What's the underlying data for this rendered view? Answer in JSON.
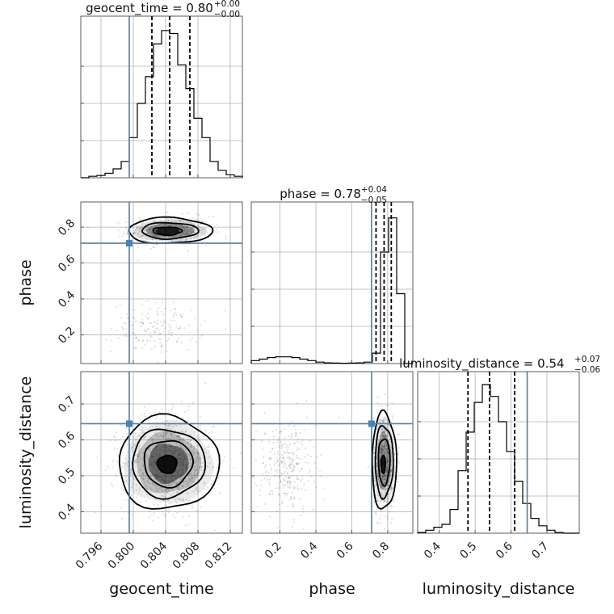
{
  "chart_data": {
    "type": "corner",
    "parameters": [
      {
        "name": "geocent_time",
        "label": "geocent_time",
        "range": [
          0.7935,
          0.8135
        ],
        "ticks": [
          0.796,
          0.8,
          0.804,
          0.808,
          0.812
        ],
        "tick_labels": [
          "0.796",
          "0.800",
          "0.804",
          "0.808",
          "0.812"
        ],
        "truth": 0.7995,
        "quantiles": [
          0.8023,
          0.8045,
          0.807
        ],
        "title_main": "geocent_time = 0.80",
        "title_plus": "+0.00",
        "title_minus": "−0.00",
        "histogram": {
          "edges": [
            0.7935,
            0.7945,
            0.7955,
            0.7965,
            0.7975,
            0.7985,
            0.7995,
            0.8005,
            0.8015,
            0.8025,
            0.8035,
            0.8045,
            0.8055,
            0.8065,
            0.8075,
            0.8085,
            0.8095,
            0.8105,
            0.8115,
            0.8125,
            0.8135
          ],
          "counts": [
            0,
            0.01,
            0.015,
            0.03,
            0.06,
            0.11,
            0.27,
            0.5,
            0.68,
            0.9,
            0.99,
            0.97,
            0.76,
            0.6,
            0.4,
            0.27,
            0.11,
            0.05,
            0.02,
            0.01
          ]
        }
      },
      {
        "name": "phase",
        "label": "phase",
        "range": [
          0.04,
          0.94
        ],
        "ticks": [
          0.2,
          0.4,
          0.6,
          0.8
        ],
        "tick_labels": [
          "0.2",
          "0.4",
          "0.6",
          "0.8"
        ],
        "truth": 0.71,
        "quantiles": [
          0.735,
          0.78,
          0.82
        ],
        "title_main": "phase = 0.78",
        "title_plus": "+0.04",
        "title_minus": "−0.05",
        "histogram": {
          "edges": [
            0.04,
            0.085,
            0.13,
            0.175,
            0.22,
            0.265,
            0.31,
            0.355,
            0.4,
            0.445,
            0.49,
            0.535,
            0.58,
            0.625,
            0.67,
            0.715,
            0.76,
            0.805,
            0.85,
            0.895,
            0.94
          ],
          "counts": [
            0.02,
            0.03,
            0.04,
            0.045,
            0.045,
            0.04,
            0.03,
            0.02,
            0.01,
            0.005,
            0.003,
            0.002,
            0.003,
            0.005,
            0.01,
            0.07,
            0.75,
            0.98,
            0.47,
            0
          ]
        }
      },
      {
        "name": "luminosity_distance",
        "label": "luminosity_distance",
        "range": [
          0.34,
          0.79
        ],
        "ticks": [
          0.4,
          0.5,
          0.6,
          0.7
        ],
        "tick_labels": [
          "0.4",
          "0.5",
          "0.6",
          "0.7"
        ],
        "truth": 0.645,
        "quantiles": [
          0.48,
          0.54,
          0.61
        ],
        "title_main": "luminosity_distance = 0.54",
        "title_plus": "+0.07",
        "title_minus": "−0.06",
        "histogram": {
          "edges": [
            0.34,
            0.3625,
            0.385,
            0.4075,
            0.43,
            0.4525,
            0.475,
            0.4975,
            0.52,
            0.5425,
            0.565,
            0.5875,
            0.61,
            0.6325,
            0.655,
            0.6775,
            0.7,
            0.7225,
            0.745,
            0.7675,
            0.79
          ],
          "counts": [
            0.005,
            0.02,
            0.04,
            0.06,
            0.16,
            0.42,
            0.68,
            0.88,
            1.0,
            0.92,
            0.75,
            0.55,
            0.35,
            0.2,
            0.1,
            0.05,
            0.02,
            0.005,
            0,
            0
          ]
        }
      }
    ],
    "pairs": [
      {
        "x": "geocent_time",
        "y": "phase",
        "truth": [
          0.7995,
          0.71
        ],
        "clusters": [
          {
            "center": [
              0.8045,
              0.78
            ],
            "spread": [
              0.0025,
              0.04
            ],
            "count": 450
          },
          {
            "center": [
              0.803,
              0.24
            ],
            "spread": [
              0.0028,
              0.07
            ],
            "count": 170
          }
        ],
        "contours": [
          {
            "center": [
              0.8045,
              0.78
            ],
            "radius": [
              0.0052,
              0.072
            ]
          },
          {
            "center": [
              0.8045,
              0.78
            ],
            "radius": [
              0.0035,
              0.045
            ]
          },
          {
            "center": [
              0.8042,
              0.778
            ],
            "radius": [
              0.0018,
              0.022
            ]
          }
        ],
        "density": [
          {
            "center": [
              0.8045,
              0.78
            ],
            "radius": [
              0.0045,
              0.06
            ],
            "shade": 0.12
          },
          {
            "center": [
              0.8045,
              0.78
            ],
            "radius": [
              0.003,
              0.04
            ],
            "shade": 0.35
          },
          {
            "center": [
              0.8042,
              0.778
            ],
            "radius": [
              0.0015,
              0.02
            ],
            "shade": 0.8
          }
        ]
      },
      {
        "x": "geocent_time",
        "y": "luminosity_distance",
        "truth": [
          0.7995,
          0.645
        ],
        "clusters": [
          {
            "center": [
              0.8043,
              0.535
            ],
            "spread": [
              0.0028,
              0.065
            ],
            "count": 900
          }
        ],
        "contours": [
          {
            "center": [
              0.8043,
              0.535
            ],
            "radius": [
              0.0062,
              0.13
            ]
          },
          {
            "center": [
              0.8043,
              0.535
            ],
            "radius": [
              0.0045,
              0.095
            ]
          },
          {
            "center": [
              0.8043,
              0.535
            ],
            "radius": [
              0.003,
              0.065
            ]
          },
          {
            "center": [
              0.8042,
              0.532
            ],
            "radius": [
              0.0012,
              0.025
            ]
          }
        ],
        "density": [
          {
            "center": [
              0.8043,
              0.535
            ],
            "radius": [
              0.0055,
              0.115
            ],
            "shade": 0.08
          },
          {
            "center": [
              0.8043,
              0.535
            ],
            "radius": [
              0.004,
              0.085
            ],
            "shade": 0.2
          },
          {
            "center": [
              0.8043,
              0.535
            ],
            "radius": [
              0.0025,
              0.055
            ],
            "shade": 0.45
          },
          {
            "center": [
              0.8042,
              0.532
            ],
            "radius": [
              0.0012,
              0.025
            ],
            "shade": 0.85
          }
        ]
      },
      {
        "x": "phase",
        "y": "luminosity_distance",
        "truth": [
          0.71,
          0.645
        ],
        "clusters": [
          {
            "center": [
              0.78,
              0.54
            ],
            "spread": [
              0.03,
              0.065
            ],
            "count": 650
          },
          {
            "center": [
              0.24,
              0.52
            ],
            "spread": [
              0.08,
              0.065
            ],
            "count": 300
          }
        ],
        "contours": [
          {
            "center": [
              0.78,
              0.54
            ],
            "radius": [
              0.068,
              0.135
            ]
          },
          {
            "center": [
              0.78,
              0.54
            ],
            "radius": [
              0.05,
              0.1
            ]
          },
          {
            "center": [
              0.78,
              0.54
            ],
            "radius": [
              0.032,
              0.065
            ]
          },
          {
            "center": [
              0.775,
              0.532
            ],
            "radius": [
              0.012,
              0.025
            ]
          }
        ],
        "density": [
          {
            "center": [
              0.78,
              0.54
            ],
            "radius": [
              0.06,
              0.12
            ],
            "shade": 0.1
          },
          {
            "center": [
              0.78,
              0.54
            ],
            "radius": [
              0.04,
              0.08
            ],
            "shade": 0.3
          },
          {
            "center": [
              0.775,
              0.532
            ],
            "radius": [
              0.013,
              0.025
            ],
            "shade": 0.85
          }
        ]
      }
    ],
    "colors": {
      "truth": "#4682b4",
      "lines": "#000000",
      "grid": "#b0b0b0"
    }
  }
}
